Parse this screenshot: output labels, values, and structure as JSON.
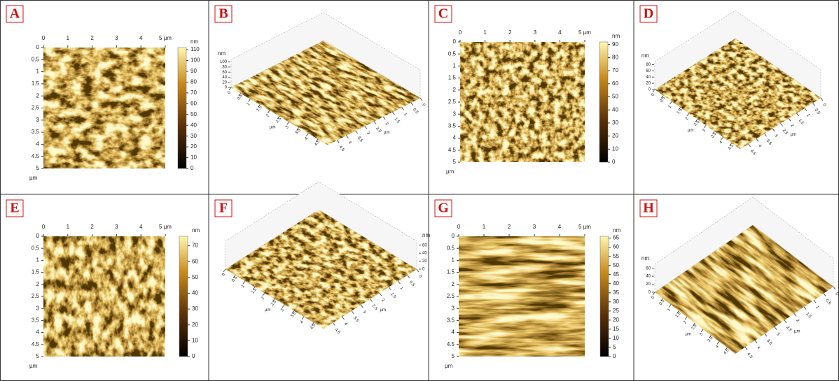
{
  "panels": [
    {
      "label": "A",
      "type": "2d",
      "xticks": [
        0,
        1,
        2,
        3,
        4,
        {
          "value": 5,
          "label": "5 µm"
        }
      ],
      "yticks": [
        0,
        0.5,
        1,
        1.5,
        2,
        2.5,
        3,
        3.5,
        4,
        4.5,
        5
      ],
      "axis_unit": "µm",
      "color_unit": "nm",
      "clim": [
        0,
        112
      ],
      "cticks": [
        0,
        10,
        20,
        30,
        40,
        50,
        60,
        70,
        80,
        90,
        100,
        110
      ]
    },
    {
      "label": "B",
      "type": "3d",
      "z_unit": "nm",
      "zlim": [
        0,
        110
      ],
      "zticks": [
        100,
        80,
        60,
        40,
        20,
        0
      ],
      "axis_ticks": [
        0,
        0.5,
        1,
        1.5,
        2,
        2.5,
        3,
        3.5,
        4,
        4.5
      ],
      "axis_unit": "µm"
    },
    {
      "label": "C",
      "type": "2d",
      "xticks": [
        0,
        1,
        2,
        3,
        4,
        {
          "value": 5,
          "label": "5 µm"
        }
      ],
      "yticks": [
        0,
        0.5,
        1,
        1.5,
        2,
        2.5,
        3,
        3.5,
        4,
        4.5,
        5
      ],
      "axis_unit": "µm",
      "color_unit": "nm",
      "clim": [
        0,
        92
      ],
      "cticks": [
        0,
        10,
        20,
        30,
        40,
        50,
        60,
        70,
        80,
        90
      ]
    },
    {
      "label": "D",
      "type": "3d",
      "z_unit": "nm",
      "zlim": [
        0,
        90
      ],
      "zticks": [
        80,
        60,
        40,
        20,
        0
      ],
      "axis_ticks": [
        0,
        0.5,
        1,
        1.5,
        2,
        2.5,
        3,
        3.5,
        4,
        4.5
      ],
      "axis_unit": "µm"
    },
    {
      "label": "E",
      "type": "2d",
      "xticks": [
        0,
        1,
        2,
        3,
        4,
        {
          "value": 5,
          "label": "5 µm"
        }
      ],
      "yticks": [
        0,
        0.5,
        1,
        1.5,
        2,
        2.5,
        3,
        3.5,
        4,
        4.5,
        5
      ],
      "axis_unit": "µm",
      "color_unit": "nm",
      "clim": [
        0,
        76
      ],
      "cticks": [
        0,
        10,
        20,
        30,
        40,
        50,
        60,
        70
      ]
    },
    {
      "label": "F",
      "type": "3d",
      "z_unit": "nm",
      "zlim": [
        0,
        70
      ],
      "zticks": [
        60,
        40,
        20,
        0
      ],
      "axis_ticks": [
        0,
        0.5,
        1,
        1.5,
        2,
        2.5,
        3,
        3.5,
        4,
        4.5
      ],
      "axis_unit": "µm"
    },
    {
      "label": "G",
      "type": "2d",
      "xticks": [
        0,
        1,
        2,
        3,
        4,
        {
          "value": 5,
          "label": "5 µm"
        }
      ],
      "yticks": [
        0,
        0.5,
        1,
        1.5,
        2,
        2.5,
        3,
        3.5,
        4,
        4.5,
        5
      ],
      "axis_unit": "µm",
      "color_unit": "nm",
      "clim": [
        0,
        66
      ],
      "cticks": [
        0,
        5,
        10,
        15,
        20,
        25,
        30,
        35,
        40,
        45,
        50,
        55,
        60,
        65
      ]
    },
    {
      "label": "H",
      "type": "3d",
      "z_unit": "nm",
      "zlim": [
        0,
        70
      ],
      "zticks": [
        60,
        40,
        20,
        0
      ],
      "axis_ticks": [
        0,
        0.5,
        1,
        1.5,
        2,
        2.5,
        3,
        3.5,
        4,
        4.5
      ],
      "axis_unit": "µm"
    }
  ]
}
